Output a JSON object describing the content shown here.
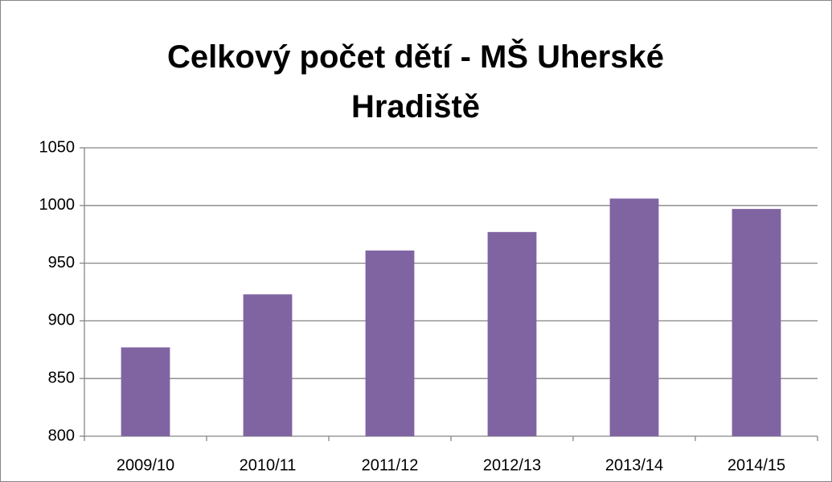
{
  "chart_data": {
    "type": "bar",
    "title": "Celkový počet dětí - MŠ Uherské Hradiště",
    "categories": [
      "2009/10",
      "2010/11",
      "2011/12",
      "2012/13",
      "2013/14",
      "2014/15"
    ],
    "values": [
      877,
      923,
      961,
      977,
      1006,
      997
    ],
    "color": "#8064a2",
    "ylim": [
      800,
      1050
    ],
    "yticks": [
      800,
      850,
      900,
      950,
      1000,
      1050
    ],
    "grid": true
  }
}
